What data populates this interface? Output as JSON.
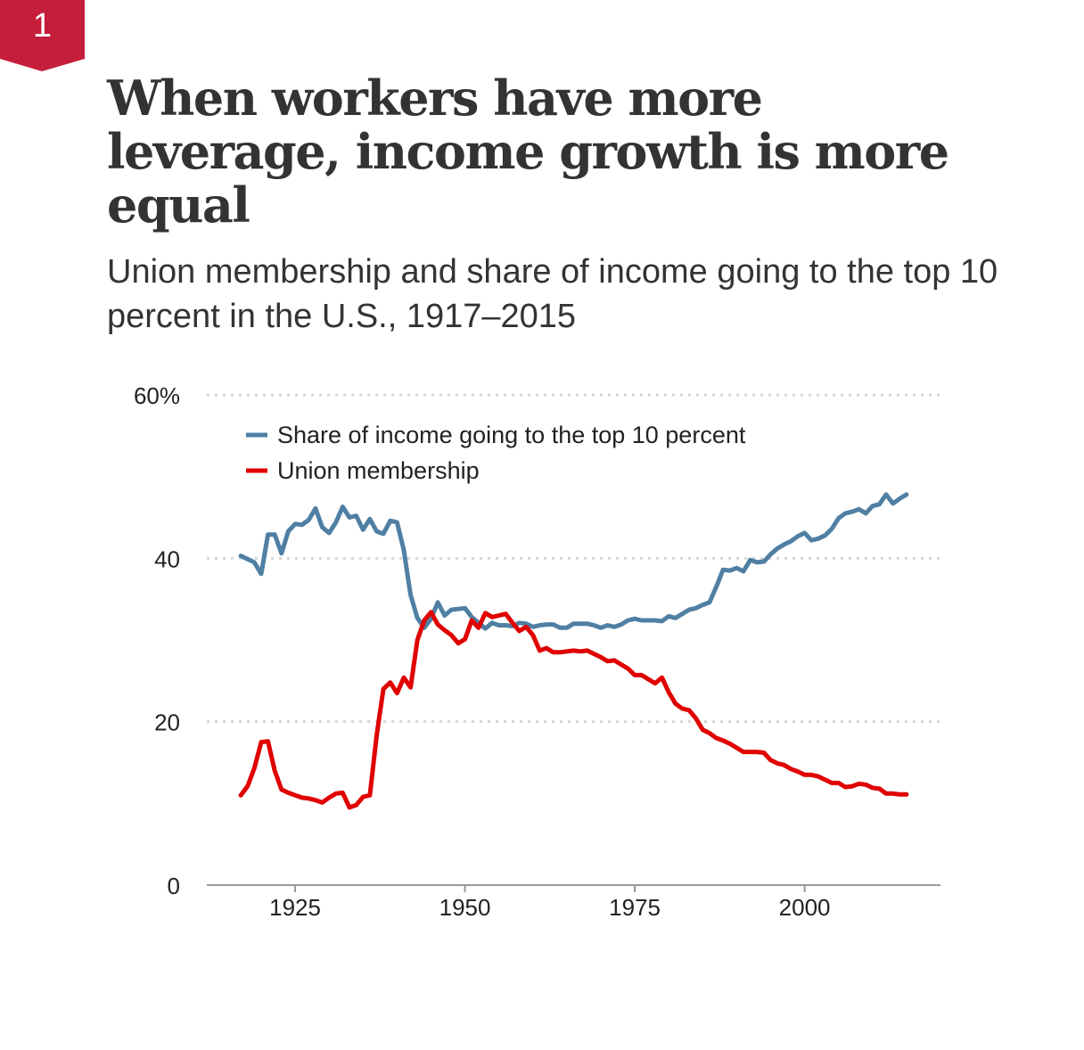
{
  "badge": {
    "number": "1",
    "color": "#c41e3a"
  },
  "title": "When workers have more leverage, income growth is more equal",
  "subtitle": "Union membership and share of income going to the top 10 percent in the U.S., 1917–2015",
  "colors": {
    "top10": "#4f7fa3",
    "union": "#e00000",
    "grid": "#d6d6d6",
    "axis": "#999999"
  },
  "chart_data": {
    "type": "line",
    "title": "When workers have more leverage, income growth is more equal",
    "subtitle": "Union membership and share of income going to the top 10 percent in the U.S., 1917–2015",
    "xlabel": "",
    "ylabel": "",
    "xlim": [
      1912,
      2020
    ],
    "ylim": [
      0,
      60
    ],
    "x_ticks": [
      {
        "value": 1925,
        "label": "1925"
      },
      {
        "value": 1950,
        "label": "1950"
      },
      {
        "value": 1975,
        "label": "1975"
      },
      {
        "value": 2000,
        "label": "2000"
      }
    ],
    "y_ticks": [
      {
        "value": 0,
        "label": "0"
      },
      {
        "value": 20,
        "label": "20"
      },
      {
        "value": 40,
        "label": "40"
      },
      {
        "value": 60,
        "label": "60%"
      }
    ],
    "grid": true,
    "legend_position": "top-left",
    "series": [
      {
        "name": "Share of income going to the top 10 percent",
        "key": "top10",
        "x": [
          1917,
          1918,
          1919,
          1920,
          1921,
          1922,
          1923,
          1924,
          1925,
          1926,
          1927,
          1928,
          1929,
          1930,
          1931,
          1932,
          1933,
          1934,
          1935,
          1936,
          1937,
          1938,
          1939,
          1940,
          1941,
          1942,
          1943,
          1944,
          1945,
          1946,
          1947,
          1948,
          1949,
          1950,
          1951,
          1952,
          1953,
          1954,
          1955,
          1956,
          1957,
          1958,
          1959,
          1960,
          1961,
          1962,
          1963,
          1964,
          1965,
          1966,
          1967,
          1968,
          1969,
          1970,
          1971,
          1972,
          1973,
          1974,
          1975,
          1976,
          1977,
          1978,
          1979,
          1980,
          1981,
          1982,
          1983,
          1984,
          1985,
          1986,
          1987,
          1988,
          1989,
          1990,
          1991,
          1992,
          1993,
          1994,
          1995,
          1996,
          1997,
          1998,
          1999,
          2000,
          2001,
          2002,
          2003,
          2004,
          2005,
          2006,
          2007,
          2008,
          2009,
          2010,
          2011,
          2012,
          2013,
          2014,
          2015
        ],
        "values": [
          40.3,
          39.9,
          39.5,
          38.1,
          42.9,
          42.9,
          40.6,
          43.3,
          44.2,
          44.1,
          44.7,
          46.1,
          43.8,
          43.1,
          44.4,
          46.3,
          45.0,
          45.2,
          43.5,
          44.8,
          43.3,
          43.0,
          44.6,
          44.4,
          41.0,
          35.5,
          32.7,
          31.5,
          32.6,
          34.6,
          33.0,
          33.7,
          33.8,
          33.9,
          32.8,
          32.1,
          31.4,
          32.1,
          31.8,
          31.8,
          31.7,
          32.1,
          32.0,
          31.6,
          31.8,
          31.9,
          31.9,
          31.5,
          31.5,
          32.0,
          32.0,
          32.0,
          31.8,
          31.5,
          31.8,
          31.6,
          31.9,
          32.4,
          32.6,
          32.4,
          32.4,
          32.4,
          32.3,
          32.9,
          32.7,
          33.2,
          33.7,
          33.9,
          34.3,
          34.6,
          36.5,
          38.6,
          38.5,
          38.8,
          38.4,
          39.8,
          39.5,
          39.6,
          40.5,
          41.2,
          41.7,
          42.1,
          42.7,
          43.1,
          42.2,
          42.4,
          42.8,
          43.6,
          44.9,
          45.5,
          45.7,
          46.0,
          45.5,
          46.4,
          46.6,
          47.8,
          46.7,
          47.3,
          47.8
        ]
      },
      {
        "name": "Union membership",
        "key": "union",
        "x": [
          1917,
          1918,
          1919,
          1920,
          1921,
          1922,
          1923,
          1924,
          1925,
          1926,
          1927,
          1928,
          1929,
          1930,
          1931,
          1932,
          1933,
          1934,
          1935,
          1936,
          1937,
          1938,
          1939,
          1940,
          1941,
          1942,
          1943,
          1944,
          1945,
          1946,
          1947,
          1948,
          1949,
          1950,
          1951,
          1952,
          1953,
          1954,
          1955,
          1956,
          1957,
          1958,
          1959,
          1960,
          1961,
          1962,
          1963,
          1964,
          1965,
          1966,
          1967,
          1968,
          1969,
          1970,
          1971,
          1972,
          1973,
          1974,
          1975,
          1976,
          1977,
          1978,
          1979,
          1980,
          1981,
          1982,
          1983,
          1984,
          1985,
          1986,
          1987,
          1988,
          1989,
          1990,
          1991,
          1992,
          1993,
          1994,
          1995,
          1996,
          1997,
          1998,
          1999,
          2000,
          2001,
          2002,
          2003,
          2004,
          2005,
          2006,
          2007,
          2008,
          2009,
          2010,
          2011,
          2012,
          2013,
          2014,
          2015
        ],
        "values": [
          11.0,
          12.1,
          14.3,
          17.5,
          17.6,
          14.0,
          11.7,
          11.3,
          11.0,
          10.7,
          10.6,
          10.4,
          10.1,
          10.7,
          11.2,
          11.3,
          9.5,
          9.8,
          10.8,
          11.0,
          18.3,
          24.0,
          24.8,
          23.5,
          25.4,
          24.2,
          30.0,
          32.4,
          33.4,
          31.9,
          31.2,
          30.6,
          29.6,
          30.1,
          32.4,
          31.5,
          33.3,
          32.8,
          33.0,
          33.2,
          32.1,
          31.1,
          31.6,
          30.6,
          28.7,
          29.0,
          28.5,
          28.5,
          28.6,
          28.7,
          28.6,
          28.7,
          28.3,
          27.9,
          27.4,
          27.5,
          27.0,
          26.5,
          25.7,
          25.7,
          25.2,
          24.7,
          25.4,
          23.6,
          22.2,
          21.6,
          21.4,
          20.4,
          19.0,
          18.6,
          18.0,
          17.7,
          17.3,
          16.8,
          16.3,
          16.3,
          16.3,
          16.2,
          15.3,
          14.9,
          14.7,
          14.2,
          13.9,
          13.5,
          13.5,
          13.3,
          12.9,
          12.5,
          12.5,
          12.0,
          12.1,
          12.4,
          12.3,
          11.9,
          11.8,
          11.2,
          11.2,
          11.1,
          11.1
        ]
      }
    ]
  }
}
